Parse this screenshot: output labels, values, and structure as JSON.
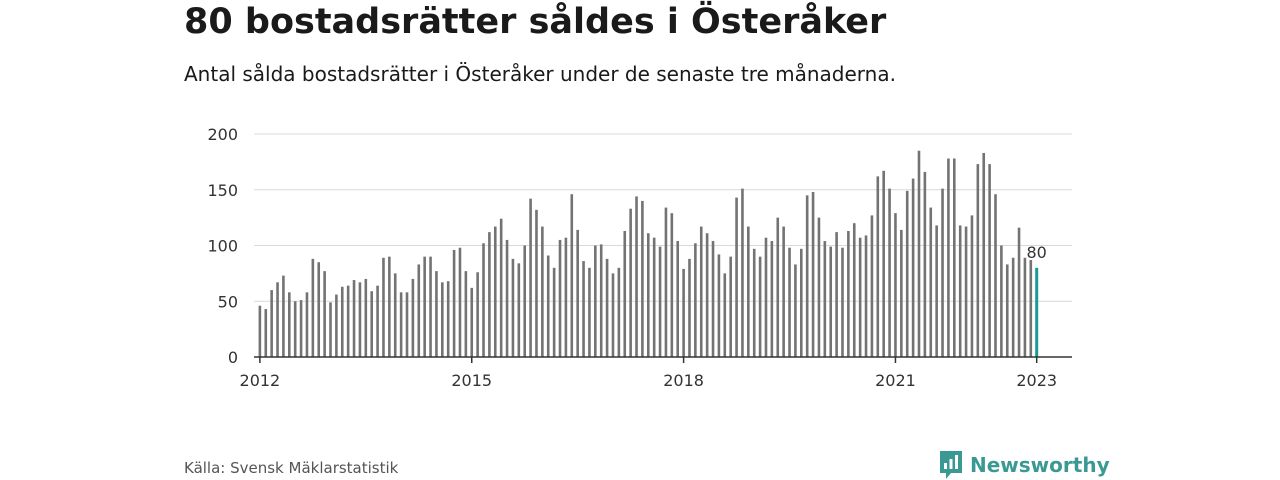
{
  "header": {
    "title": "80 bostadsrätter såldes i Österåker",
    "subtitle": "Antal sålda bostadsrätter i Österåker under de senaste tre månaderna."
  },
  "footer": {
    "source": "Källa: Svensk Mäklarstatistik",
    "brand": "Newsworthy",
    "brand_icon": "newsworthy-logo-icon"
  },
  "colors": {
    "bar": "#737373",
    "highlight": "#1a9a94",
    "grid": "#d9d9d9",
    "axis": "#333333",
    "brand": "#3a9a93"
  },
  "chart_data": {
    "type": "bar",
    "title": "80 bostadsrätter såldes i Österåker",
    "subtitle": "Antal sålda bostadsrätter i Österåker under de senaste tre månaderna.",
    "xlabel": "",
    "ylabel": "",
    "ylim": [
      0,
      200
    ],
    "yticks": [
      "0",
      "50",
      "100",
      "150",
      "200"
    ],
    "xticks": [
      "2012",
      "2015",
      "2018",
      "2021",
      "2023"
    ],
    "xlim": [
      "2011-12",
      "2023-07"
    ],
    "grid": true,
    "start_month": "2012-01",
    "end_month": "2023-01",
    "values": [
      46,
      43,
      60,
      67,
      73,
      58,
      50,
      51,
      58,
      88,
      85,
      77,
      49,
      56,
      63,
      64,
      69,
      67,
      70,
      59,
      64,
      89,
      90,
      75,
      58,
      58,
      70,
      83,
      90,
      90,
      77,
      67,
      68,
      96,
      98,
      77,
      62,
      76,
      102,
      112,
      117,
      124,
      105,
      88,
      84,
      100,
      142,
      132,
      117,
      91,
      80,
      105,
      107,
      146,
      114,
      86,
      80,
      100,
      101,
      88,
      75,
      80,
      113,
      133,
      144,
      140,
      111,
      107,
      99,
      134,
      129,
      104,
      79,
      88,
      102,
      117,
      111,
      104,
      92,
      75,
      90,
      143,
      151,
      117,
      97,
      90,
      107,
      104,
      125,
      117,
      98,
      83,
      97,
      145,
      148,
      125,
      104,
      99,
      112,
      98,
      113,
      120,
      107,
      109,
      127,
      162,
      167,
      151,
      129,
      114,
      149,
      160,
      185,
      166,
      134,
      118,
      151,
      178,
      178,
      118,
      117,
      127,
      173,
      183,
      173,
      146,
      100,
      83,
      89,
      116,
      89,
      87,
      80
    ],
    "highlight_last_label": "80"
  }
}
